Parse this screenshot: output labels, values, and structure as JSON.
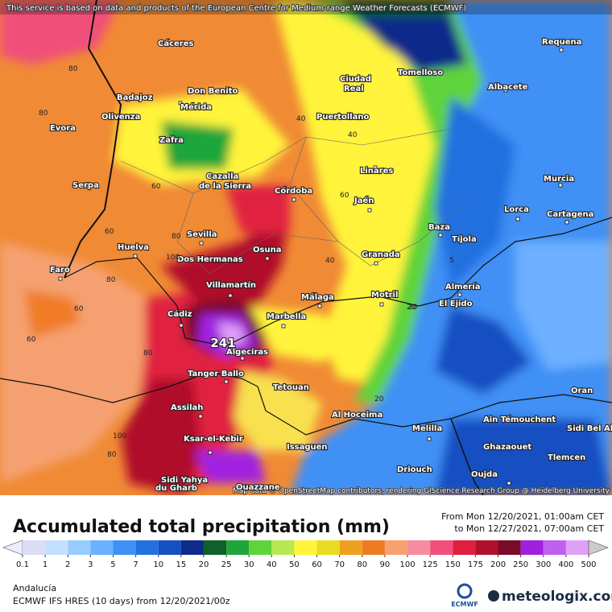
{
  "header": {
    "notice": "This service is based on data and products of the European Centre for Medium-range Weather Forecasts (ECMWF)"
  },
  "map": {
    "attribution": "Map data © OpenStreetMap contributors, rendering GIScience Research Group @ Heidelberg University",
    "max_label": "241",
    "cities": [
      "Cáceres",
      "Badajoz",
      "Don Benito",
      "Mérida",
      "Olivenza",
      "Evora",
      "Zafra",
      "Cazalla",
      "de la Sierra",
      "Ciudad",
      "Real",
      "Puertollano",
      "Tomelloso",
      "Requena",
      "Albacete",
      "Serpa",
      "Córdoba",
      "Linares",
      "Jaén",
      "Murcia",
      "Lorca",
      "Cartagena",
      "Baza",
      "Tíjola",
      "Huelva",
      "Sevilla",
      "Dos Hermanas",
      "Osuna",
      "Granada",
      "Faro",
      "Villamartín",
      "Almería",
      "Málaga",
      "Motril",
      "El Ejido",
      "Marbella",
      "Cádiz",
      "Algeciras",
      "Tanger Ballo",
      "Tetouan",
      "Assilah",
      "Al Hoceima",
      "Melilla",
      "Oran",
      "Ain Témouchent",
      "Sidi Bel Ab",
      "Ksar-el-Kebir",
      "Issaguen",
      "Ghazaouet",
      "Tlemcen",
      "Driouch",
      "Oujda",
      "Sidi Yahya",
      "du Gharb",
      "Ouazzane"
    ],
    "contour_labels": [
      80,
      80,
      60,
      60,
      60,
      40,
      40,
      60,
      80,
      100,
      40,
      20,
      5,
      20,
      80,
      60,
      80,
      100,
      80,
      20
    ]
  },
  "footer": {
    "title": "Accumulated total precipitation (mm)",
    "from": "From Mon 12/20/2021, 01:00am CET",
    "to": "to Mon 12/27/2021, 07:00am CET",
    "region": "Andalucía",
    "model": "ECMWF IFS HRES (10 days) from 12/20/2021/00z",
    "ecmwf": "ECMWF",
    "brand": "meteologix.com"
  },
  "legend": {
    "ticks": [
      0.1,
      1,
      2,
      3,
      5,
      7,
      10,
      15,
      20,
      25,
      30,
      40,
      50,
      60,
      70,
      80,
      90,
      100,
      125,
      150,
      175,
      200,
      250,
      300,
      400,
      500
    ],
    "colors": [
      "#eeeefa",
      "#dcdcf6",
      "#c2e0ff",
      "#98ccff",
      "#6cb0ff",
      "#3f90f5",
      "#2370e0",
      "#1450c2",
      "#0e2a8a",
      "#10602a",
      "#1ea63a",
      "#5ed33a",
      "#b8e850",
      "#fff43a",
      "#e8dd20",
      "#f0a020",
      "#f07b25",
      "#f8a070",
      "#f78ba0",
      "#f0507a",
      "#e0203f",
      "#b0102a",
      "#7a0a2a",
      "#a020e0",
      "#c060f0",
      "#e0a0f8",
      "#f4d0f8",
      "#fbeefa",
      "#cccccc"
    ]
  }
}
